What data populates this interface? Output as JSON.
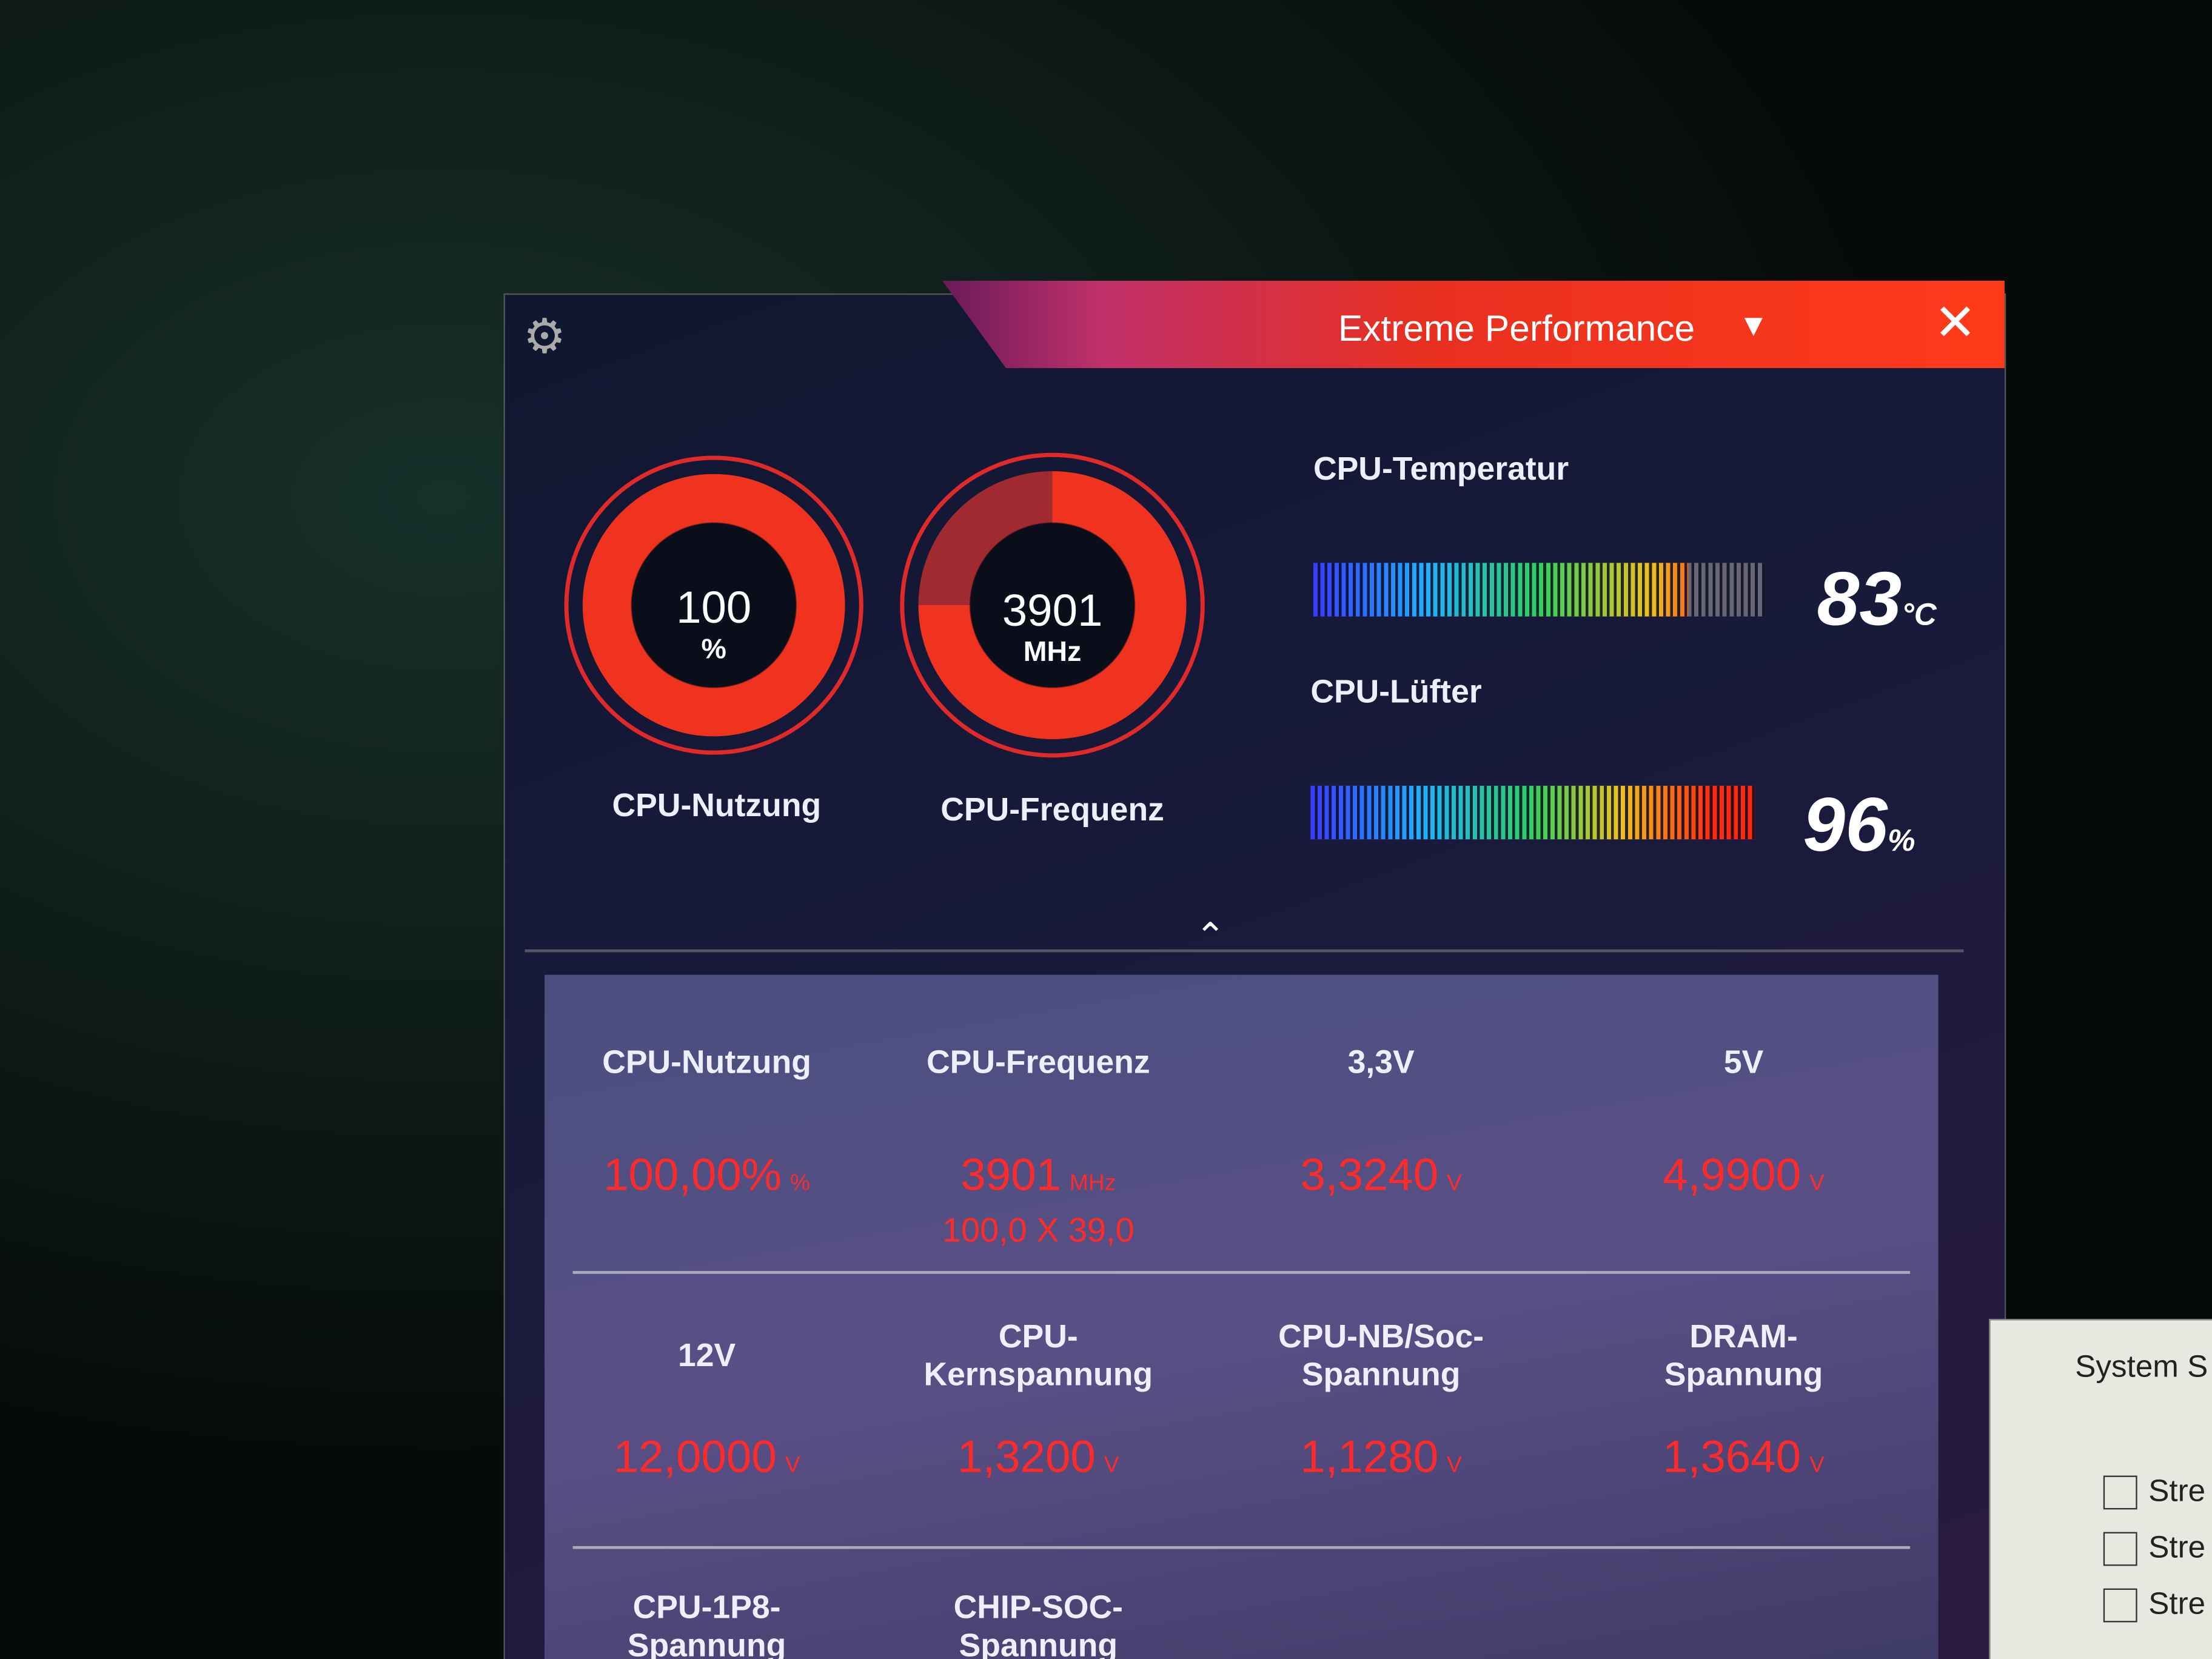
{
  "header": {
    "title": "Extreme Performance"
  },
  "gauges": [
    {
      "value": "100",
      "unit": "%",
      "label": "CPU-Nutzung"
    },
    {
      "value": "3901",
      "unit": "MHz",
      "label": "CPU-Frequenz"
    }
  ],
  "sensors": [
    {
      "label": "CPU-Temperatur",
      "value": "83",
      "unit": "°C"
    },
    {
      "label": "CPU-Lüfter",
      "value": "96",
      "unit": "%"
    }
  ],
  "table": {
    "cells": [
      {
        "label": "CPU-Nutzung",
        "value": "100,00%",
        "unit": "%"
      },
      {
        "label": "CPU-Frequenz",
        "value": "3901",
        "unit": "MHz",
        "detail": "100,0 X 39,0"
      },
      {
        "label": "3,3V",
        "value": "3,3240",
        "unit": "V"
      },
      {
        "label": "5V",
        "value": "4,9900",
        "unit": "V"
      },
      {
        "label": "12V",
        "value": "12,0000",
        "unit": "V"
      },
      {
        "label": "CPU-Kernspannung",
        "value": "1,3200",
        "unit": "V"
      },
      {
        "label": "CPU-NB/Soc-Spannung",
        "value": "1,1280",
        "unit": "V"
      },
      {
        "label": "DRAM-Spannung",
        "value": "1,3640",
        "unit": "V"
      },
      {
        "label": "CPU-1P8-Spannung"
      },
      {
        "label": "CHIP-SOC-Spannung"
      }
    ]
  },
  "side_window": {
    "title": "System S",
    "items": [
      "Stre",
      "Stre",
      "Stre"
    ]
  }
}
